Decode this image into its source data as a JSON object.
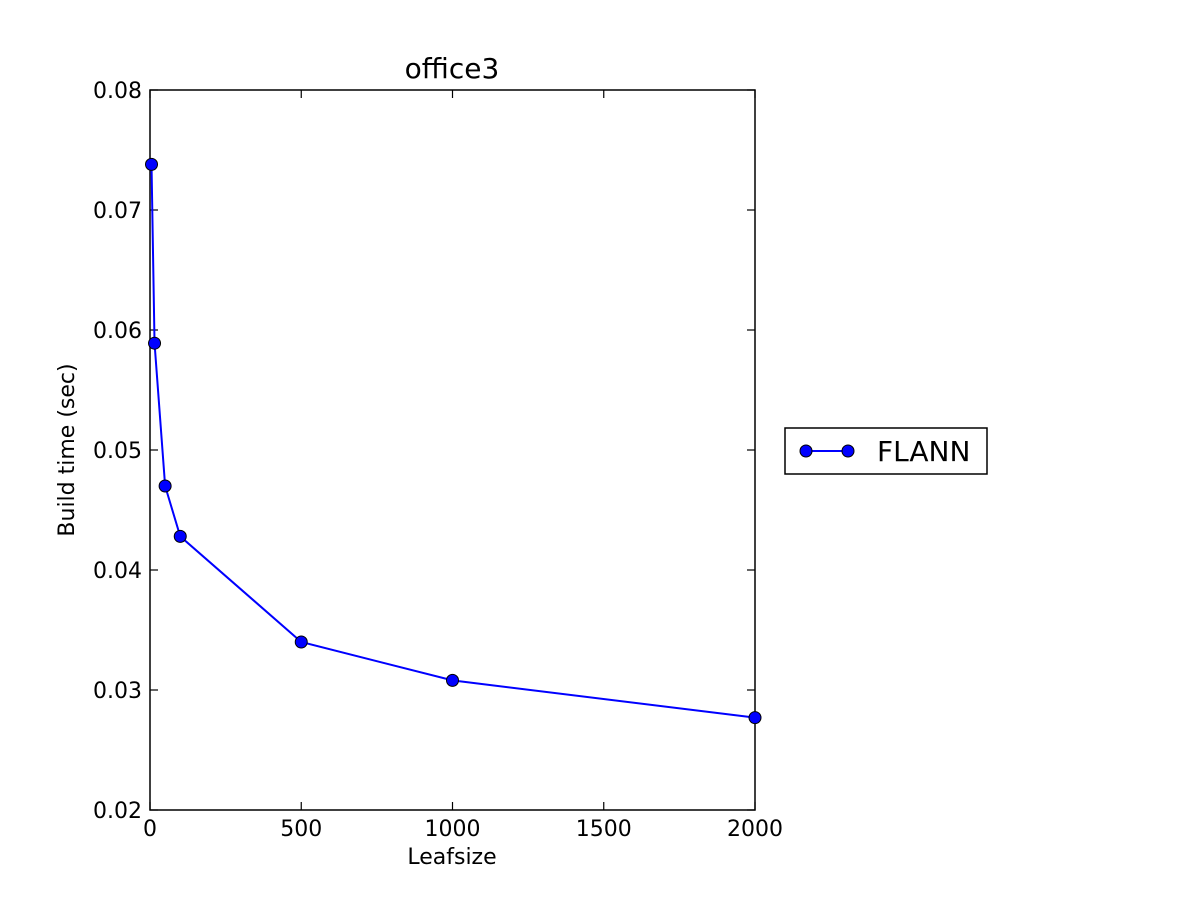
{
  "chart_data": {
    "type": "line",
    "title": "office3",
    "xlabel": "Leafsize",
    "ylabel": "Build time (sec)",
    "xlim": [
      0,
      2000
    ],
    "ylim": [
      0.02,
      0.08
    ],
    "xticks": [
      0,
      500,
      1000,
      1500,
      2000
    ],
    "xtick_labels": [
      "0",
      "500",
      "1000",
      "1500",
      "2000"
    ],
    "yticks": [
      0.02,
      0.03,
      0.04,
      0.05,
      0.06,
      0.07,
      0.08
    ],
    "ytick_labels": [
      "0.02",
      "0.03",
      "0.04",
      "0.05",
      "0.06",
      "0.07",
      "0.08"
    ],
    "grid": false,
    "legend_position": "outside right",
    "series": [
      {
        "name": "FLANN",
        "color": "#0000ff",
        "marker": "circle",
        "x": [
          5,
          15,
          50,
          100,
          500,
          1000,
          2000
        ],
        "y": [
          0.0738,
          0.0589,
          0.047,
          0.0428,
          0.034,
          0.0308,
          0.0277
        ]
      }
    ]
  }
}
